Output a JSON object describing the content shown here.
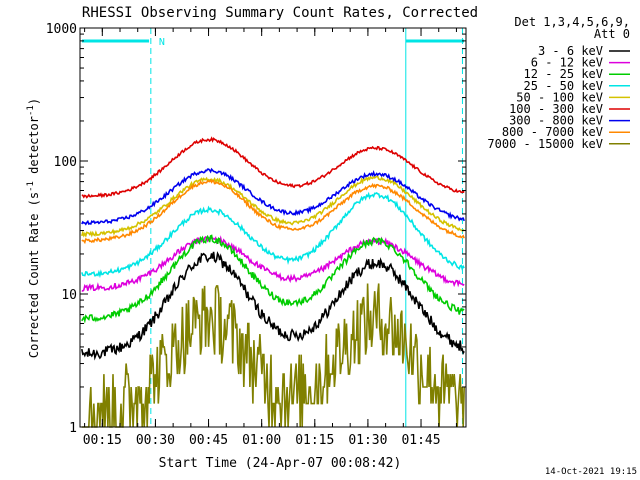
{
  "chart_data": {
    "type": "line",
    "title": "RHESSI Observing Summary Count Rates, Corrected",
    "xlabel": "Start Time (24-Apr-07 00:08:42)",
    "ylabel_main": "Corrected Count Rate (s",
    "ylabel_sup1": "-1",
    "ylabel_mid": " detector",
    "ylabel_sup2": "-1",
    "ylabel_end": ")",
    "yscale": "log",
    "ylim": [
      1,
      1000
    ],
    "xlim_minutes": [
      0,
      109
    ],
    "x_ticks": [
      {
        "label": "00:15",
        "t": 6.3
      },
      {
        "label": "00:30",
        "t": 21.3
      },
      {
        "label": "00:45",
        "t": 36.3
      },
      {
        "label": "01:00",
        "t": 51.3
      },
      {
        "label": "01:15",
        "t": 66.3
      },
      {
        "label": "01:30",
        "t": 81.3
      },
      {
        "label": "01:45",
        "t": 96.3
      }
    ],
    "y_ticks": [
      {
        "label": "1",
        "v": 1
      },
      {
        "label": "10",
        "v": 10
      },
      {
        "label": "100",
        "v": 100
      },
      {
        "label": "1000",
        "v": 1000
      }
    ],
    "legend_header": [
      "Det 1,3,4,5,6,9,",
      "Att 0"
    ],
    "legend_placement": "right",
    "series": [
      {
        "name": "3 - 6 keV",
        "color": "#000000",
        "base": 3.5,
        "peak1": 19,
        "peak2": 17,
        "noise": 0.1
      },
      {
        "name": "6 - 12 keV",
        "color": "#dd00dd",
        "base": 11,
        "peak1": 26,
        "peak2": 25,
        "noise": 0.05
      },
      {
        "name": "12 - 25 keV",
        "color": "#00cc00",
        "base": 6.5,
        "peak1": 26,
        "peak2": 25,
        "noise": 0.06
      },
      {
        "name": "25 - 50 keV",
        "color": "#00e5e5",
        "base": 14,
        "peak1": 43,
        "peak2": 56,
        "noise": 0.04
      },
      {
        "name": "50 - 100 keV",
        "color": "#d4c200",
        "base": 28,
        "peak1": 73,
        "peak2": 75,
        "noise": 0.03
      },
      {
        "name": "100 - 300 keV",
        "color": "#dd0000",
        "base": 54,
        "peak1": 145,
        "peak2": 125,
        "noise": 0.025
      },
      {
        "name": "300 - 800 keV",
        "color": "#0000ee",
        "base": 34,
        "peak1": 85,
        "peak2": 80,
        "noise": 0.03
      },
      {
        "name": "800 - 7000 keV",
        "color": "#ff8800",
        "base": 25,
        "peak1": 70,
        "peak2": 65,
        "noise": 0.03
      },
      {
        "name": "7000 - 15000 keV",
        "color": "#808000",
        "base": 1.3,
        "peak1": 6.5,
        "peak2": 6.5,
        "noise": 0.22
      }
    ],
    "peak_times_minutes": [
      36.5,
      83.5
    ],
    "peak_width_minutes": 11,
    "night_marker_label": "N",
    "footer_date": "14-Oct-2021 19:15"
  }
}
